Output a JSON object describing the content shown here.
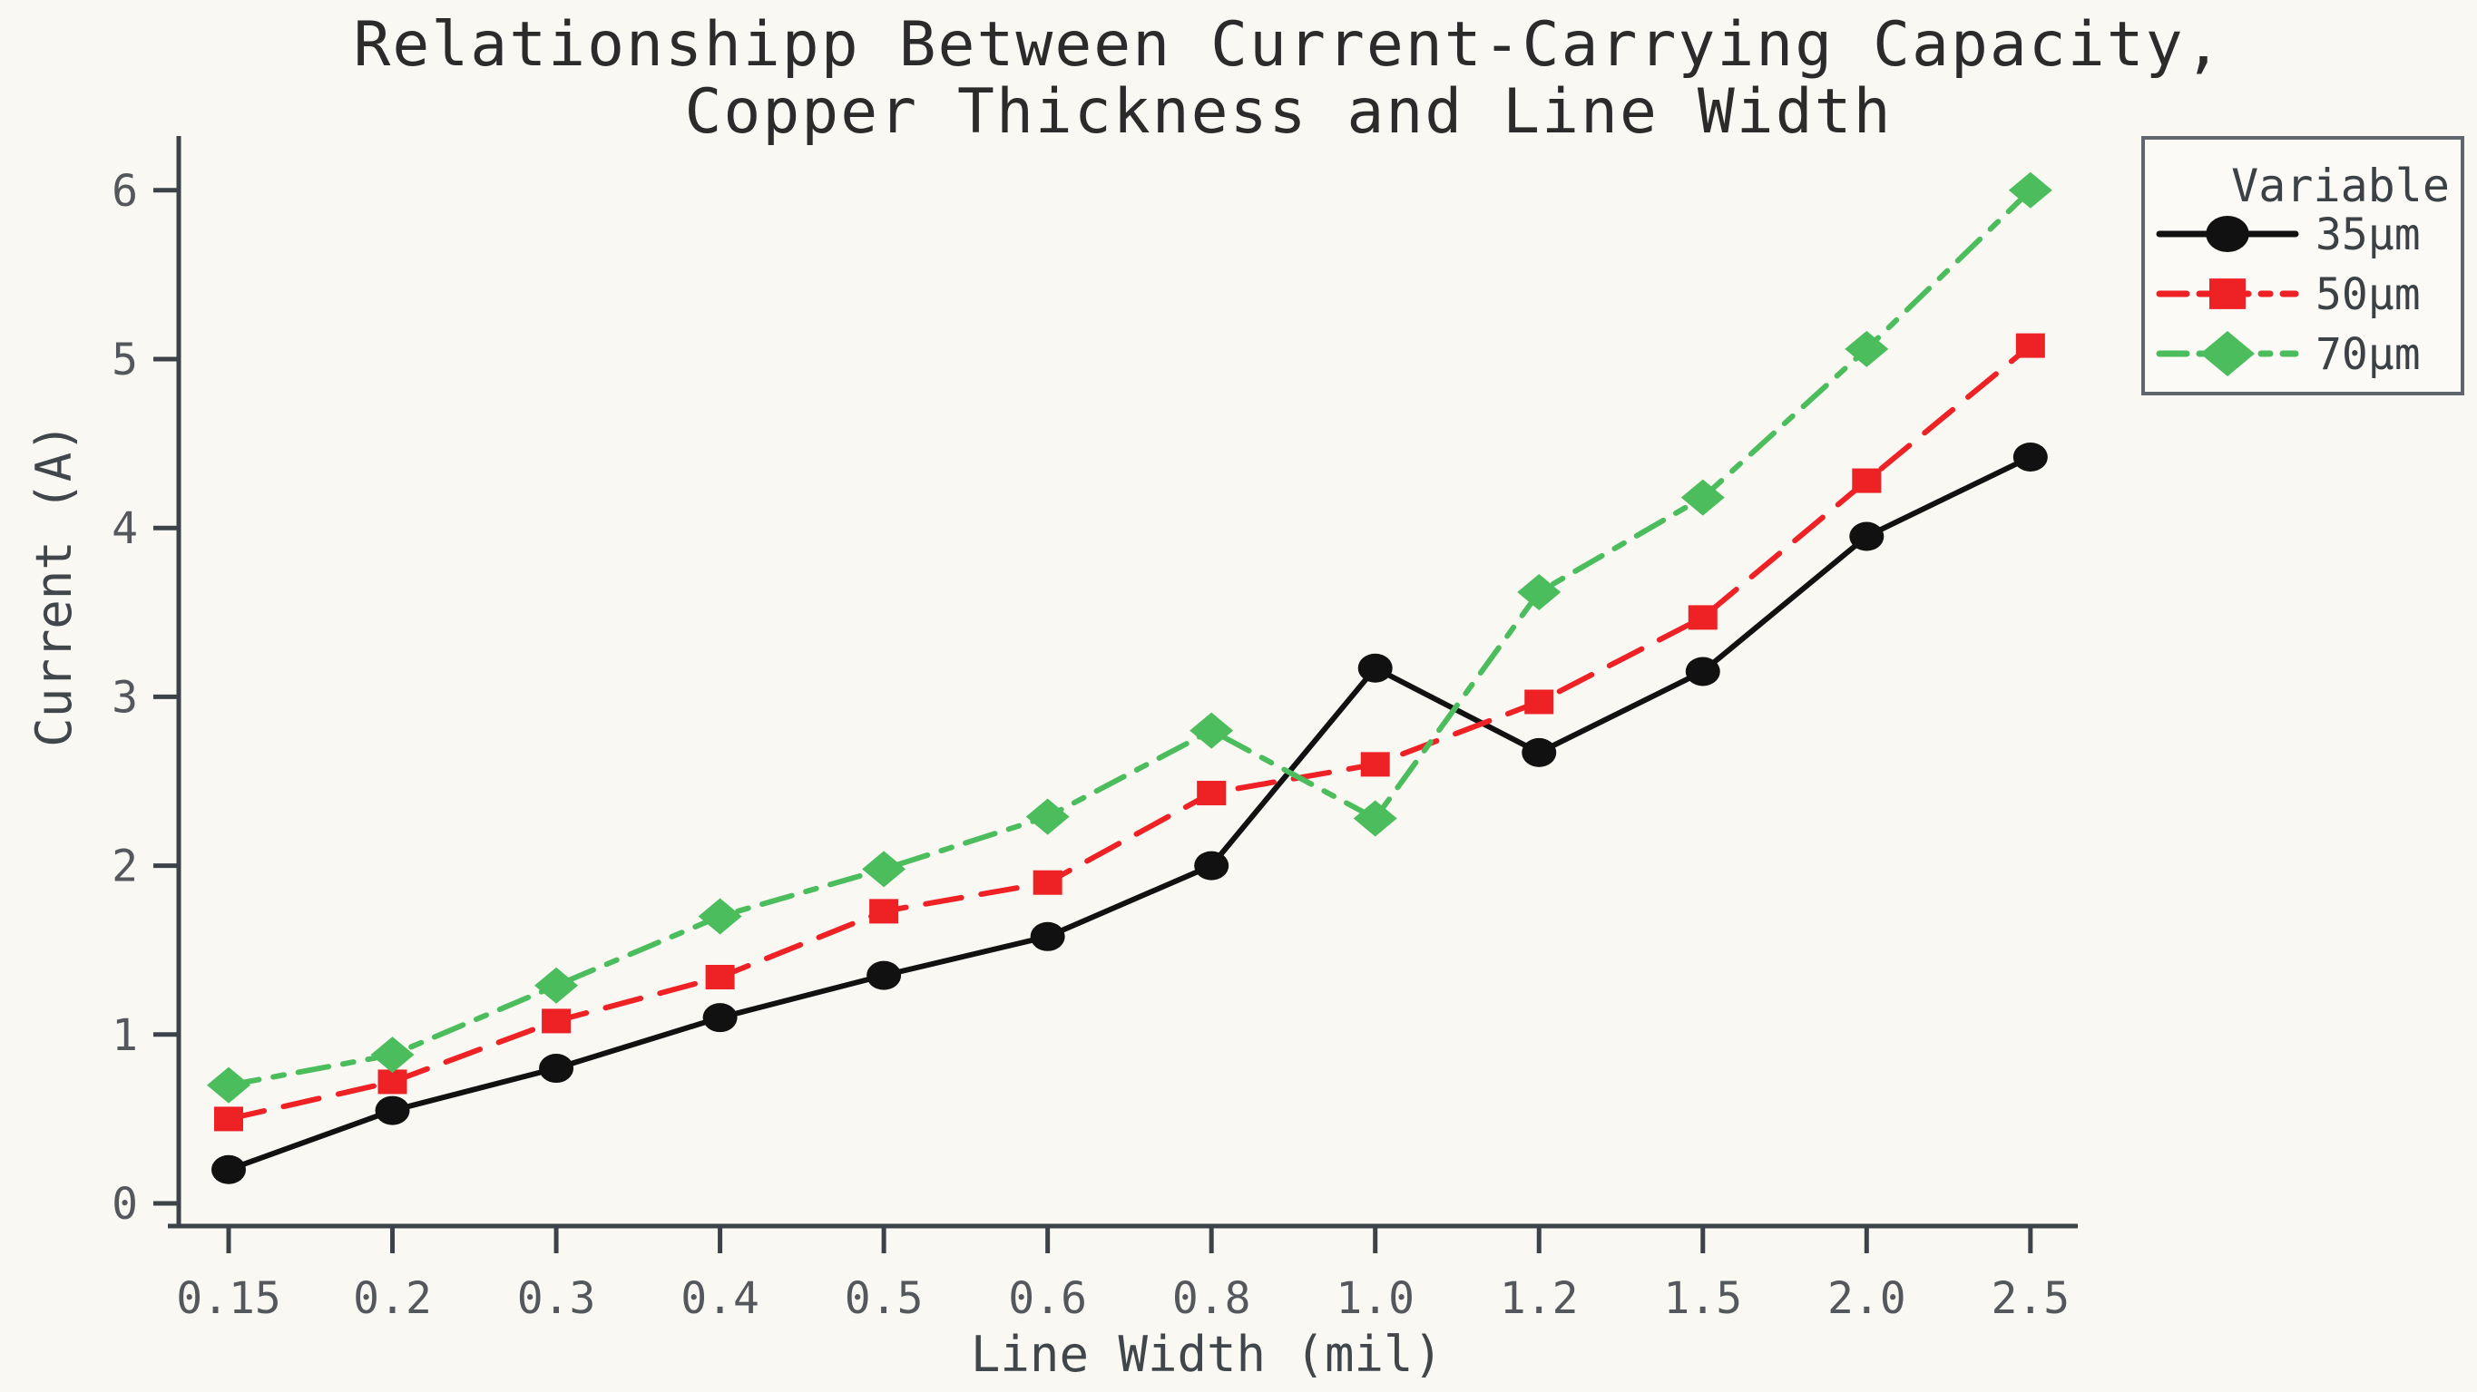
{
  "title": {
    "line1": "Relationshipp Between Current-Carrying Capacity,",
    "line2": "Copper Thickness and Line Width"
  },
  "chart_data": {
    "type": "line",
    "title": "Relationshipp Between Current-Carrying Capacity, Copper Thickness and Line Width",
    "xlabel": "Line Width (mil)",
    "ylabel": "Current (A)",
    "categories": [
      "0.15",
      "0.2",
      "0.3",
      "0.4",
      "0.5",
      "0.6",
      "0.8",
      "1.0",
      "1.2",
      "1.5",
      "2.0",
      "2.5"
    ],
    "y_ticks": [
      "0",
      "1",
      "2",
      "3",
      "4",
      "5",
      "6"
    ],
    "ylim": [
      0,
      6.3
    ],
    "grid": false,
    "legend": {
      "title": "Variable",
      "position": "upper right"
    },
    "series": [
      {
        "name": "35µm",
        "color": "#111111",
        "marker": "circle",
        "line_style": "solid",
        "values": [
          0.2,
          0.55,
          0.8,
          1.1,
          1.35,
          1.58,
          2.0,
          3.17,
          2.67,
          3.15,
          3.95,
          4.42
        ]
      },
      {
        "name": "50µm",
        "color": "#ee2125",
        "marker": "square",
        "line_style": "dashed",
        "values": [
          0.5,
          0.72,
          1.08,
          1.34,
          1.73,
          1.9,
          2.43,
          2.6,
          2.97,
          3.47,
          4.28,
          5.08
        ]
      },
      {
        "name": "70µm",
        "color": "#4bbd5c",
        "marker": "diamond",
        "line_style": "dashdot",
        "values": [
          0.7,
          0.88,
          1.29,
          1.7,
          1.98,
          2.29,
          2.8,
          2.28,
          3.62,
          4.18,
          5.06,
          6.0
        ]
      }
    ],
    "colors": {
      "background": "#f9f8f3",
      "spine": "#3c4248",
      "tick_text": "#54585c",
      "title_text": "#2b2b2b"
    }
  }
}
